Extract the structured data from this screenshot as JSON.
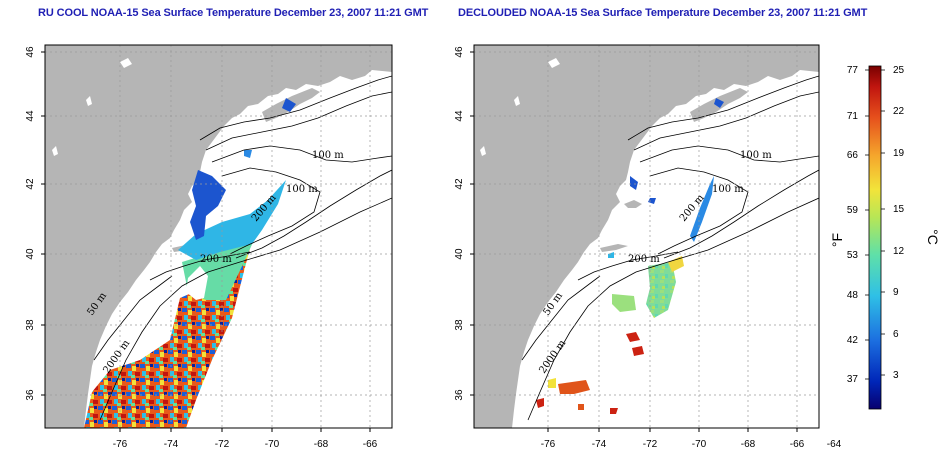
{
  "titles": {
    "left": "RU COOL NOAA-15 Sea Surface Temperature December 23, 2007 11:21 GMT",
    "right": "DECLOUDED NOAA-15 Sea Surface Temperature December 23, 2007 11:21 GMT"
  },
  "axes": {
    "lat_ticks": [
      "46",
      "44",
      "42",
      "40",
      "38",
      "36"
    ],
    "lon_ticks": [
      "-76",
      "-74",
      "-72",
      "-70",
      "-68",
      "-66",
      "-64"
    ]
  },
  "contour_labels": {
    "left": [
      "100 m",
      "100 m",
      "200 m",
      "200 m",
      "50 m",
      "2000 m"
    ],
    "right": [
      "100 m",
      "100 m",
      "200 m",
      "200 m",
      "50 m",
      "2000 m"
    ]
  },
  "colorbar": {
    "fahrenheit_labels": [
      "77",
      "71",
      "66",
      "59",
      "53",
      "48",
      "42",
      "37"
    ],
    "celsius_labels": [
      "25",
      "22",
      "19",
      "15",
      "12",
      "9",
      "6",
      "3"
    ],
    "unit_f": "°F",
    "unit_c": "°C",
    "gradient": [
      "#08006e",
      "#0033cc",
      "#1e7fe6",
      "#2fc7e0",
      "#62e09a",
      "#bfe65a",
      "#f5e43a",
      "#f5a12a",
      "#e8531c",
      "#c3160f",
      "#7a0000"
    ]
  },
  "colors": {
    "land": "#b5b5b5",
    "ocean": "#ffffff",
    "title": "#1f1fb4",
    "grid": "#9a9a9a"
  }
}
